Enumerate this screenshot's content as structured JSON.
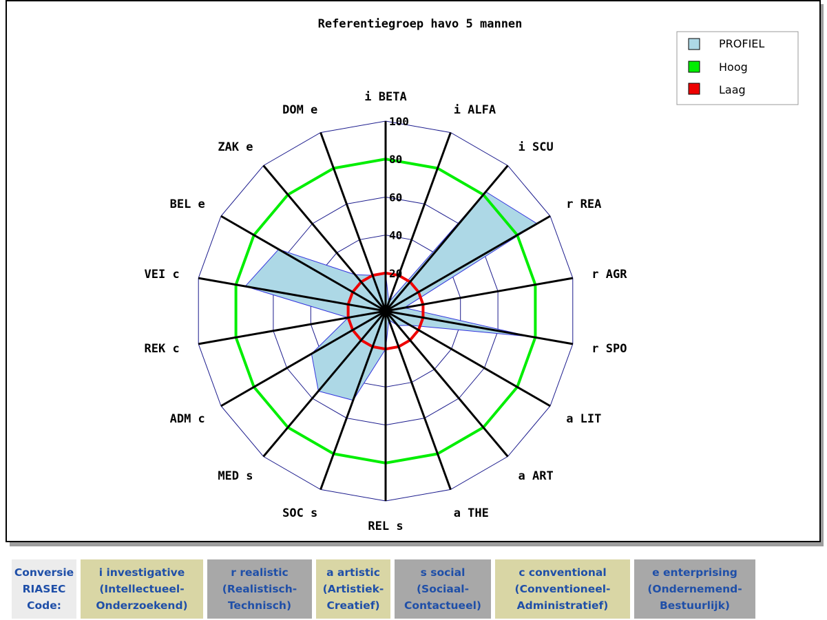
{
  "chart_data": {
    "type": "radar",
    "title": "Referentiegroep havo 5 mannen",
    "axes": [
      "i BETA",
      "i ALFA",
      "i SCU",
      "r REA",
      "r AGR",
      "r SPO",
      "a LIT",
      "a ART",
      "a THE",
      "REL s",
      "SOC s",
      "MED s",
      "ADM c",
      "REK c",
      "VEI c",
      "BEL e",
      "ZAK e",
      "DOM e"
    ],
    "rlim": [
      0,
      100
    ],
    "ticks": [
      "20",
      "40",
      "60",
      "80",
      "100"
    ],
    "series": [
      {
        "name": "PROFIEL",
        "color": "#add8e6",
        "values": [
          20,
          5,
          82,
          92,
          10,
          78,
          15,
          10,
          5,
          20,
          50,
          55,
          45,
          20,
          75,
          65,
          25,
          20
        ]
      },
      {
        "name": "Hoog",
        "color": "#00ee00",
        "values": [
          80,
          80,
          80,
          80,
          80,
          80,
          80,
          80,
          80,
          80,
          80,
          80,
          80,
          80,
          80,
          80,
          80,
          80
        ]
      },
      {
        "name": "Laag",
        "color": "#ee0000",
        "values": [
          20,
          20,
          20,
          20,
          20,
          20,
          20,
          20,
          20,
          20,
          20,
          20,
          20,
          20,
          20,
          20,
          20,
          20
        ]
      }
    ],
    "legend_position": "top-right"
  },
  "legend": {
    "items": [
      "PROFIEL",
      "Hoog",
      "Laag"
    ]
  },
  "riasec": {
    "header": "Conversie RIASEC Code:",
    "i": "i investigative (Intellectueel-Onderzoekend)",
    "r": "r realistic (Realistisch-Technisch)",
    "a": "a artistic (Artistiek-Creatief)",
    "s": "s social (Sociaal-Contactueel)",
    "c": "c conventional (Conventioneel-Administratief)",
    "e": "e enterprising (Ondernemend-Bestuurlijk)",
    "header_lines": [
      "Conversie",
      "RIASEC",
      "Code:"
    ],
    "i_lines": [
      "i investigative",
      "(Intellectueel-",
      "Onderzoekend)"
    ],
    "r_lines": [
      "r realistic",
      "(Realistisch-",
      "Technisch)"
    ],
    "a_lines": [
      "a artistic",
      "(Artistiek-",
      "Creatief)"
    ],
    "s_lines": [
      "s social",
      "(Sociaal-",
      "Contactueel)"
    ],
    "c_lines": [
      "c conventional",
      "(Conventioneel-",
      "Administratief)"
    ],
    "e_lines": [
      "e enterprising",
      "(Ondernemend-",
      "Bestuurlijk)"
    ]
  }
}
